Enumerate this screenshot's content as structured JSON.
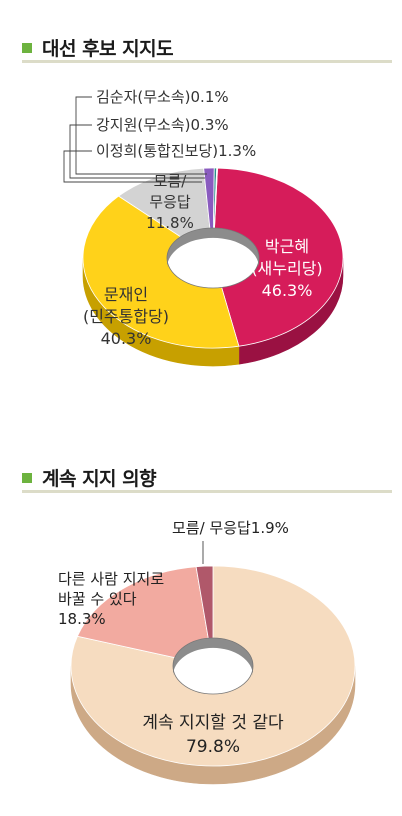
{
  "colors": {
    "accent_square": "#6db33f",
    "rule": "#dcdcc8"
  },
  "chart_data": [
    {
      "type": "pie",
      "donut": true,
      "title": "대선 후보 지지도",
      "unit": "%",
      "slices": [
        {
          "label": [
            "박근혜",
            "(새누리당)"
          ],
          "value": 46.3,
          "color": "#d61c5a",
          "side": "#9a1142",
          "text_color": "#ffffff",
          "value_text": "46.3%"
        },
        {
          "label": [
            "문재인",
            "(민주통합당)"
          ],
          "value": 40.3,
          "color": "#ffd21a",
          "side": "#c7a000",
          "text_color": "#333333",
          "value_text": "40.3%"
        },
        {
          "label": [
            "모름/",
            "무응답"
          ],
          "value": 11.8,
          "color": "#d3d3d3",
          "side": "#9c9c9c",
          "text_color": "#333333",
          "value_text": "11.8%"
        },
        {
          "label": [
            "이정희(통합진보당)"
          ],
          "value": 1.3,
          "color": "#8a5bbf",
          "side": "#5e3d86",
          "text_color": "#333333",
          "value_text": "1.3%"
        },
        {
          "label": [
            "강지원(무소속)"
          ],
          "value": 0.3,
          "color": "#2a8f8a",
          "side": "#1c5f5c",
          "text_color": "#333333",
          "value_text": "0.3%"
        },
        {
          "label": [
            "김순자(무소속)"
          ],
          "value": 0.1,
          "color": "#2f5ea8",
          "side": "#1f3f72",
          "text_color": "#333333",
          "value_text": "0.1%"
        }
      ]
    },
    {
      "type": "pie",
      "donut": true,
      "title": "계속 지지 의향",
      "unit": "%",
      "slices": [
        {
          "label": [
            "계속 지지할 것 같다"
          ],
          "value": 79.8,
          "color": "#f6dcc0",
          "side": "#cda986",
          "text_color": "#222222",
          "value_text": "79.8%"
        },
        {
          "label": [
            "다른 사람 지지로",
            "바꿀 수 있다"
          ],
          "value": 18.3,
          "color": "#f2aaa0",
          "side": "#c27c72",
          "text_color": "#222222",
          "value_text": "18.3%"
        },
        {
          "label": [
            "모름/ 무응답"
          ],
          "value": 1.9,
          "color": "#b0586a",
          "side": "#7c3344",
          "text_color": "#222222",
          "value_text": "1.9%"
        }
      ]
    }
  ]
}
